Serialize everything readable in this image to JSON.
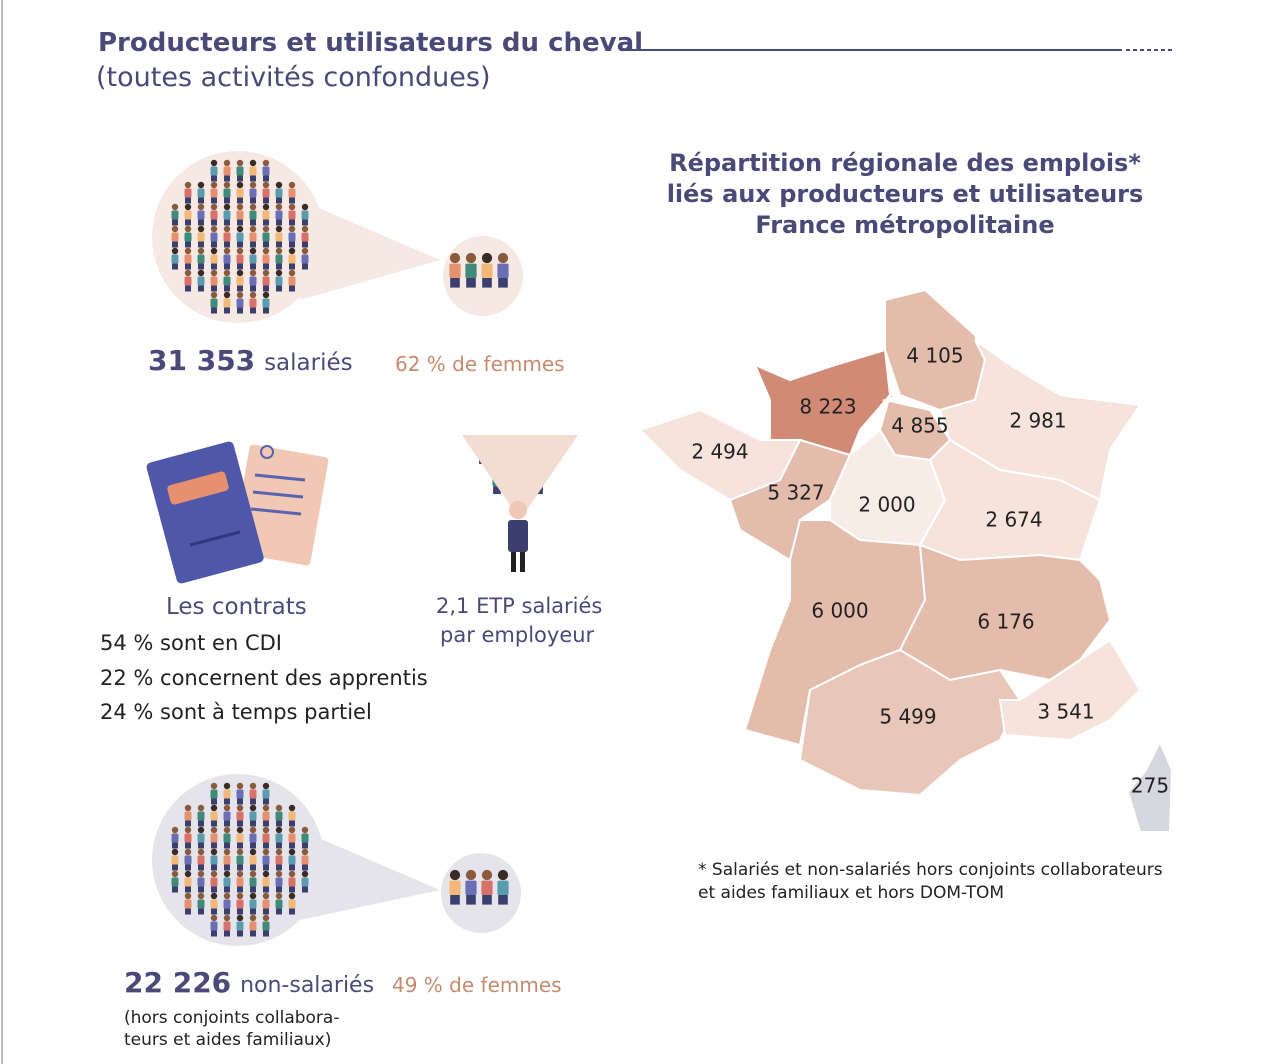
{
  "header": {
    "title": "Producteurs et utilisateurs du cheval",
    "subtitle": "(toutes activités confondues)"
  },
  "salaries": {
    "count": "31 353",
    "label": "salariés",
    "women": "62 % de femmes"
  },
  "contrats": {
    "title": "Les contrats",
    "items": [
      "54 % sont en CDI",
      "22 % concernent des apprentis",
      "24 % sont à temps partiel"
    ]
  },
  "etp": {
    "lines": [
      "2,1 ETP salariés",
      "par employeur"
    ]
  },
  "non_salaries": {
    "count": "22 226",
    "label": "non-salariés",
    "note_lines": [
      "(hors conjoints collabora-",
      "teurs et aides familiaux)"
    ],
    "women": "49 % de femmes"
  },
  "map": {
    "title_lines": [
      "Répartition régionale des emplois*",
      "liés aux producteurs et utilisateurs",
      "France métropolitaine"
    ],
    "regions": [
      {
        "name": "Hauts-de-France",
        "label": "4 105"
      },
      {
        "name": "Normandie",
        "label": "8 223"
      },
      {
        "name": "Île-de-France",
        "label": "4 855"
      },
      {
        "name": "Grand Est",
        "label": "2 981"
      },
      {
        "name": "Bretagne",
        "label": "2 494"
      },
      {
        "name": "Pays de la Loire",
        "label": "5 327"
      },
      {
        "name": "Centre-Val de Loire",
        "label": "2 000"
      },
      {
        "name": "Bourgogne-Franche-Comté",
        "label": "2 674"
      },
      {
        "name": "Nouvelle-Aquitaine",
        "label": "6 000"
      },
      {
        "name": "Auvergne-Rhône-Alpes",
        "label": "6 176"
      },
      {
        "name": "Occitanie",
        "label": "5 499"
      },
      {
        "name": "Provence-Alpes-Côte d'Azur",
        "label": "3 541"
      },
      {
        "name": "Corse",
        "label": "275"
      }
    ],
    "footnote_lines": [
      "* Salariés et non-salariés hors conjoints collaborateurs",
      "et aides familiaux et hors DOM-TOM"
    ]
  }
}
